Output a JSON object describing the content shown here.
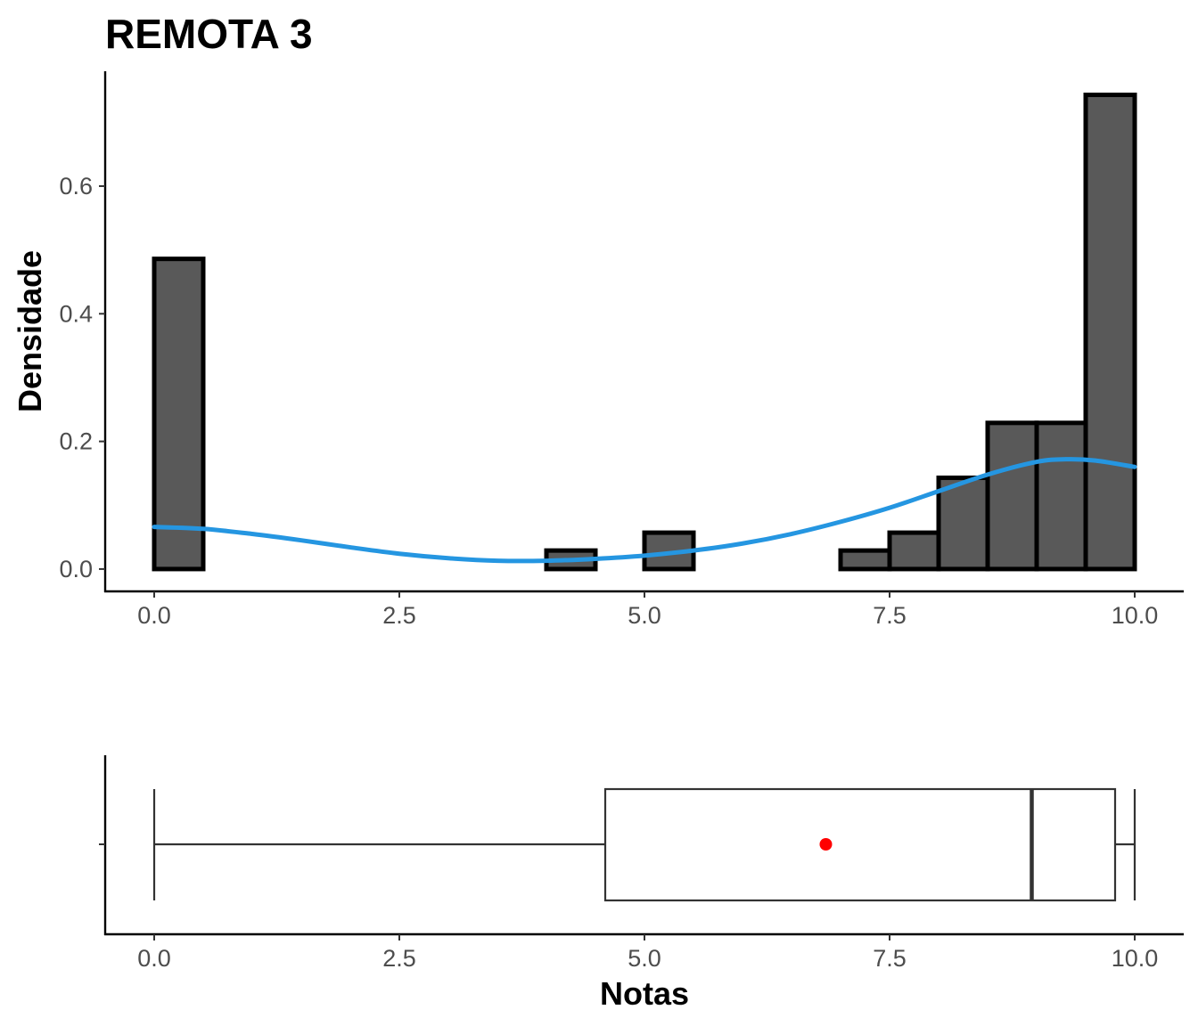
{
  "chart_data": [
    {
      "type": "histogram",
      "title": "REMOTA 3",
      "ylabel": "Densidade",
      "xlabel": "",
      "xlim": [
        -0.5,
        10.5
      ],
      "ylim": [
        -0.035,
        0.78
      ],
      "x_ticks": [
        0,
        2.5,
        5,
        7.5,
        10
      ],
      "x_tick_labels": [
        "0.0",
        "2.5",
        "5.0",
        "7.5",
        "10.0"
      ],
      "y_ticks": [
        0,
        0.2,
        0.4,
        0.6
      ],
      "y_tick_labels": [
        "0.0",
        "0.2",
        "0.4",
        "0.6"
      ],
      "bin_width": 0.5,
      "bins": [
        {
          "start": 0.0,
          "end": 0.5,
          "density": 0.486
        },
        {
          "start": 0.5,
          "end": 1.0,
          "density": 0.0
        },
        {
          "start": 1.0,
          "end": 1.5,
          "density": 0.0
        },
        {
          "start": 1.5,
          "end": 2.0,
          "density": 0.0
        },
        {
          "start": 2.0,
          "end": 2.5,
          "density": 0.0
        },
        {
          "start": 2.5,
          "end": 3.0,
          "density": 0.0
        },
        {
          "start": 3.0,
          "end": 3.5,
          "density": 0.0
        },
        {
          "start": 3.5,
          "end": 4.0,
          "density": 0.0
        },
        {
          "start": 4.0,
          "end": 4.5,
          "density": 0.029
        },
        {
          "start": 4.5,
          "end": 5.0,
          "density": 0.0
        },
        {
          "start": 5.0,
          "end": 5.5,
          "density": 0.057
        },
        {
          "start": 5.5,
          "end": 6.0,
          "density": 0.0
        },
        {
          "start": 6.0,
          "end": 6.5,
          "density": 0.0
        },
        {
          "start": 6.5,
          "end": 7.0,
          "density": 0.0
        },
        {
          "start": 7.0,
          "end": 7.5,
          "density": 0.029
        },
        {
          "start": 7.5,
          "end": 8.0,
          "density": 0.057
        },
        {
          "start": 8.0,
          "end": 8.5,
          "density": 0.143
        },
        {
          "start": 8.5,
          "end": 9.0,
          "density": 0.229
        },
        {
          "start": 9.0,
          "end": 9.5,
          "density": 0.229
        },
        {
          "start": 9.5,
          "end": 10.0,
          "density": 0.743
        }
      ],
      "density_curve": {
        "color": "#2596e1",
        "points": [
          [
            0.0,
            0.066
          ],
          [
            0.5,
            0.063
          ],
          [
            1.0,
            0.055
          ],
          [
            1.5,
            0.045
          ],
          [
            2.0,
            0.034
          ],
          [
            2.5,
            0.024
          ],
          [
            3.0,
            0.017
          ],
          [
            3.5,
            0.013
          ],
          [
            4.0,
            0.013
          ],
          [
            4.5,
            0.016
          ],
          [
            5.0,
            0.021
          ],
          [
            5.5,
            0.029
          ],
          [
            6.0,
            0.04
          ],
          [
            6.5,
            0.055
          ],
          [
            7.0,
            0.074
          ],
          [
            7.5,
            0.096
          ],
          [
            8.0,
            0.122
          ],
          [
            8.5,
            0.148
          ],
          [
            9.0,
            0.168
          ],
          [
            9.3,
            0.172
          ],
          [
            9.6,
            0.17
          ],
          [
            10.0,
            0.16
          ]
        ]
      },
      "bar_fill": "#595959",
      "bar_stroke": "#000000"
    },
    {
      "type": "boxplot",
      "xlabel": "Notas",
      "xlim": [
        -0.5,
        10.5
      ],
      "x_ticks": [
        0,
        2.5,
        5,
        7.5,
        10
      ],
      "x_tick_labels": [
        "0.0",
        "2.5",
        "5.0",
        "7.5",
        "10.0"
      ],
      "min": 0.0,
      "q1": 4.6,
      "median": 8.95,
      "q3": 9.8,
      "max": 10.0,
      "mean": 6.85,
      "mean_color": "#ff0000"
    }
  ]
}
